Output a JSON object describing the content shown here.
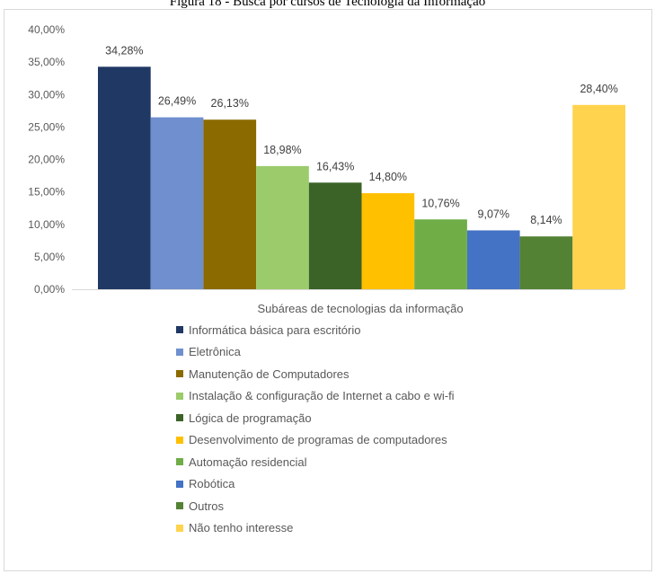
{
  "caption": "Figura 18 - Busca por cursos de Tecnologia da Informação",
  "chart_data": {
    "type": "bar",
    "xlabel": "Subáreas de tecnologias da informação",
    "ylabel": "",
    "ylim": [
      0,
      40
    ],
    "yticks": [
      "0,00%",
      "5,00%",
      "10,00%",
      "15,00%",
      "20,00%",
      "25,00%",
      "30,00%",
      "35,00%",
      "40,00%"
    ],
    "grid": false,
    "legend_position": "bottom",
    "series": [
      {
        "name": "Informática básica para escritório",
        "value": 34.28,
        "label": "34,28%",
        "color": "#203864"
      },
      {
        "name": "Eletrônica",
        "value": 26.49,
        "label": "26,49%",
        "color": "#6f8fcf"
      },
      {
        "name": "Manutenção de Computadores",
        "value": 26.13,
        "label": "26,13%",
        "color": "#8b6a00"
      },
      {
        "name": "Instalação & configuração de Internet a cabo e wi-fi",
        "value": 18.98,
        "label": "18,98%",
        "color": "#9ccb6b"
      },
      {
        "name": "Lógica de programação",
        "value": 16.43,
        "label": "16,43%",
        "color": "#3b6327"
      },
      {
        "name": "Desenvolvimento de programas de computadores",
        "value": 14.8,
        "label": "14,80%",
        "color": "#ffc000"
      },
      {
        "name": "Automação residencial",
        "value": 10.76,
        "label": "10,76%",
        "color": "#70ad47"
      },
      {
        "name": "Robótica",
        "value": 9.07,
        "label": "9,07%",
        "color": "#4472c4"
      },
      {
        "name": "Outros",
        "value": 8.14,
        "label": "8,14%",
        "color": "#548235"
      },
      {
        "name": "Não tenho interesse",
        "value": 28.4,
        "label": "28,40%",
        "color": "#ffd34d"
      }
    ]
  }
}
